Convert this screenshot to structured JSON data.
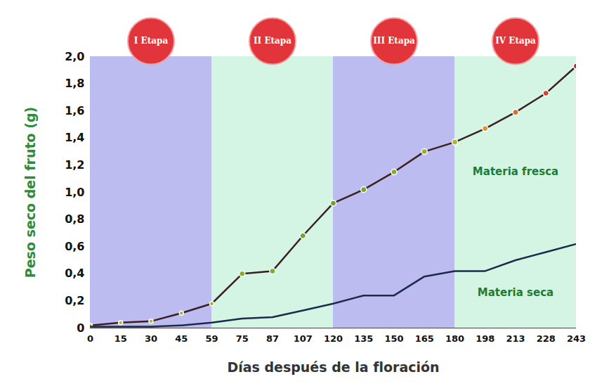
{
  "chart_data": {
    "type": "line",
    "x_label": "Días después de la floración",
    "y_label": "Peso seco del fruto (g)",
    "categories": [
      0,
      15,
      30,
      45,
      59,
      75,
      87,
      107,
      120,
      135,
      150,
      165,
      180,
      198,
      213,
      228,
      243
    ],
    "series": [
      {
        "name": "Materia fresca",
        "color": "#3a2020",
        "marker": "circle",
        "colors": [
          "#b5c94a",
          "#a9c23f",
          "#a3c03c",
          "#99bb36",
          "#92b833",
          "#83b02c",
          "#7aab29",
          "#71a628",
          "#6aa22a",
          "#74a92b",
          "#82ae2e",
          "#8fb332",
          "#b0b236",
          "#e0922e",
          "#de6a2a",
          "#d3422a",
          "#b8261a"
        ],
        "values": [
          0.02,
          0.04,
          0.05,
          0.11,
          0.18,
          0.4,
          0.42,
          0.68,
          0.92,
          1.02,
          1.15,
          1.3,
          1.37,
          1.47,
          1.59,
          1.73,
          1.93
        ]
      },
      {
        "name": "Materia seca",
        "color": "#1d2a4a",
        "marker": "none",
        "values": [
          0.01,
          0.01,
          0.01,
          0.02,
          0.04,
          0.07,
          0.08,
          0.13,
          0.18,
          0.24,
          0.24,
          0.38,
          0.42,
          0.42,
          0.5,
          0.56,
          0.62
        ]
      }
    ],
    "stages": [
      {
        "label": "I Etapa",
        "start": 0,
        "end": 59
      },
      {
        "label": "II Etapa",
        "start": 59,
        "end": 120
      },
      {
        "label": "III Etapa",
        "start": 120,
        "end": 180
      },
      {
        "label": "IV Etapa",
        "start": 180,
        "end": 243
      }
    ],
    "ylim": [
      0,
      2
    ],
    "yticks": [
      0,
      {
        "value": 0.2,
        "label": "0,2"
      },
      {
        "value": 0.4,
        "label": "0,4"
      },
      {
        "value": 0.6,
        "label": "0,6"
      },
      {
        "value": 0.8,
        "label": "0,8"
      },
      {
        "value": 1,
        "label": "1,0"
      },
      {
        "value": 1.2,
        "label": "1,2"
      },
      {
        "value": 1.4,
        "label": "1,4"
      },
      {
        "value": 1.6,
        "label": "1,6"
      },
      {
        "value": 1.8,
        "label": "1,8"
      },
      {
        "value": 2,
        "label": "2,0"
      }
    ],
    "grid": false,
    "legend": false
  }
}
